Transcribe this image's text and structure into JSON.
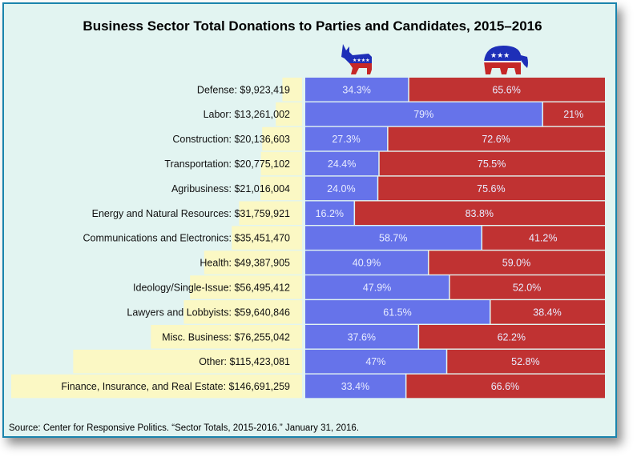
{
  "chart_data": {
    "type": "bar",
    "stacked": true,
    "orientation": "horizontal",
    "title": "Business Sector Total Donations to Parties and Candidates, 2015–2016",
    "source": "Source: Center for Responsive Politics. “Sector Totals, 2015-2016.” January 31, 2016.",
    "legend": {
      "democrat_icon": "democratic-donkey-icon",
      "republican_icon": "republican-elephant-icon",
      "placement": "top"
    },
    "colors": {
      "democrat": "#6673ea",
      "republican": "#c03232",
      "total": "#fbf8c4",
      "background": "#e2f4f1",
      "border": "#1a84ad"
    },
    "categories": [
      {
        "label": "Defense: $9,923,419",
        "total": 9923419,
        "dem": 34.3,
        "dem_label": "34.3%",
        "rep": 65.6,
        "rep_label": "65.6%"
      },
      {
        "label": "Labor: $13,261,002",
        "total": 13261002,
        "dem": 79,
        "dem_label": "79%",
        "rep": 21,
        "rep_label": "21%"
      },
      {
        "label": "Construction: $20,136,603",
        "total": 20136603,
        "dem": 27.3,
        "dem_label": "27.3%",
        "rep": 72.6,
        "rep_label": "72.6%"
      },
      {
        "label": "Transportation: $20,775,102",
        "total": 20775102,
        "dem": 24.4,
        "dem_label": "24.4%",
        "rep": 75.5,
        "rep_label": "75.5%"
      },
      {
        "label": "Agribusiness: $21,016,004",
        "total": 21016004,
        "dem": 24.0,
        "dem_label": "24.0%",
        "rep": 75.6,
        "rep_label": "75.6%"
      },
      {
        "label": "Energy and Natural Resources: $31,759,921",
        "total": 31759921,
        "dem": 16.2,
        "dem_label": "16.2%",
        "rep": 83.8,
        "rep_label": "83.8%"
      },
      {
        "label": "Communications and Electronics: $35,451,470",
        "total": 35451470,
        "dem": 58.7,
        "dem_label": "58.7%",
        "rep": 41.2,
        "rep_label": "41.2%"
      },
      {
        "label": "Health: $49,387,905",
        "total": 49387905,
        "dem": 40.9,
        "dem_label": "40.9%",
        "rep": 59.0,
        "rep_label": "59.0%"
      },
      {
        "label": "Ideology/Single-Issue: $56,495,412",
        "total": 56495412,
        "dem": 47.9,
        "dem_label": "47.9%",
        "rep": 52.0,
        "rep_label": "52.0%"
      },
      {
        "label": "Lawyers and Lobbyists: $59,640,846",
        "total": 59640846,
        "dem": 61.5,
        "dem_label": "61.5%",
        "rep": 38.4,
        "rep_label": "38.4%"
      },
      {
        "label": "Misc. Business: $76,255,042",
        "total": 76255042,
        "dem": 37.6,
        "dem_label": "37.6%",
        "rep": 62.2,
        "rep_label": "62.2%"
      },
      {
        "label": "Other: $115,423,081",
        "total": 115423081,
        "dem": 47,
        "dem_label": "47%",
        "rep": 52.8,
        "rep_label": "52.8%"
      },
      {
        "label": "Finance, Insurance, and Real Estate: $146,691,259",
        "total": 146691259,
        "dem": 33.4,
        "dem_label": "33.4%",
        "rep": 66.6,
        "rep_label": "66.6%"
      }
    ]
  }
}
